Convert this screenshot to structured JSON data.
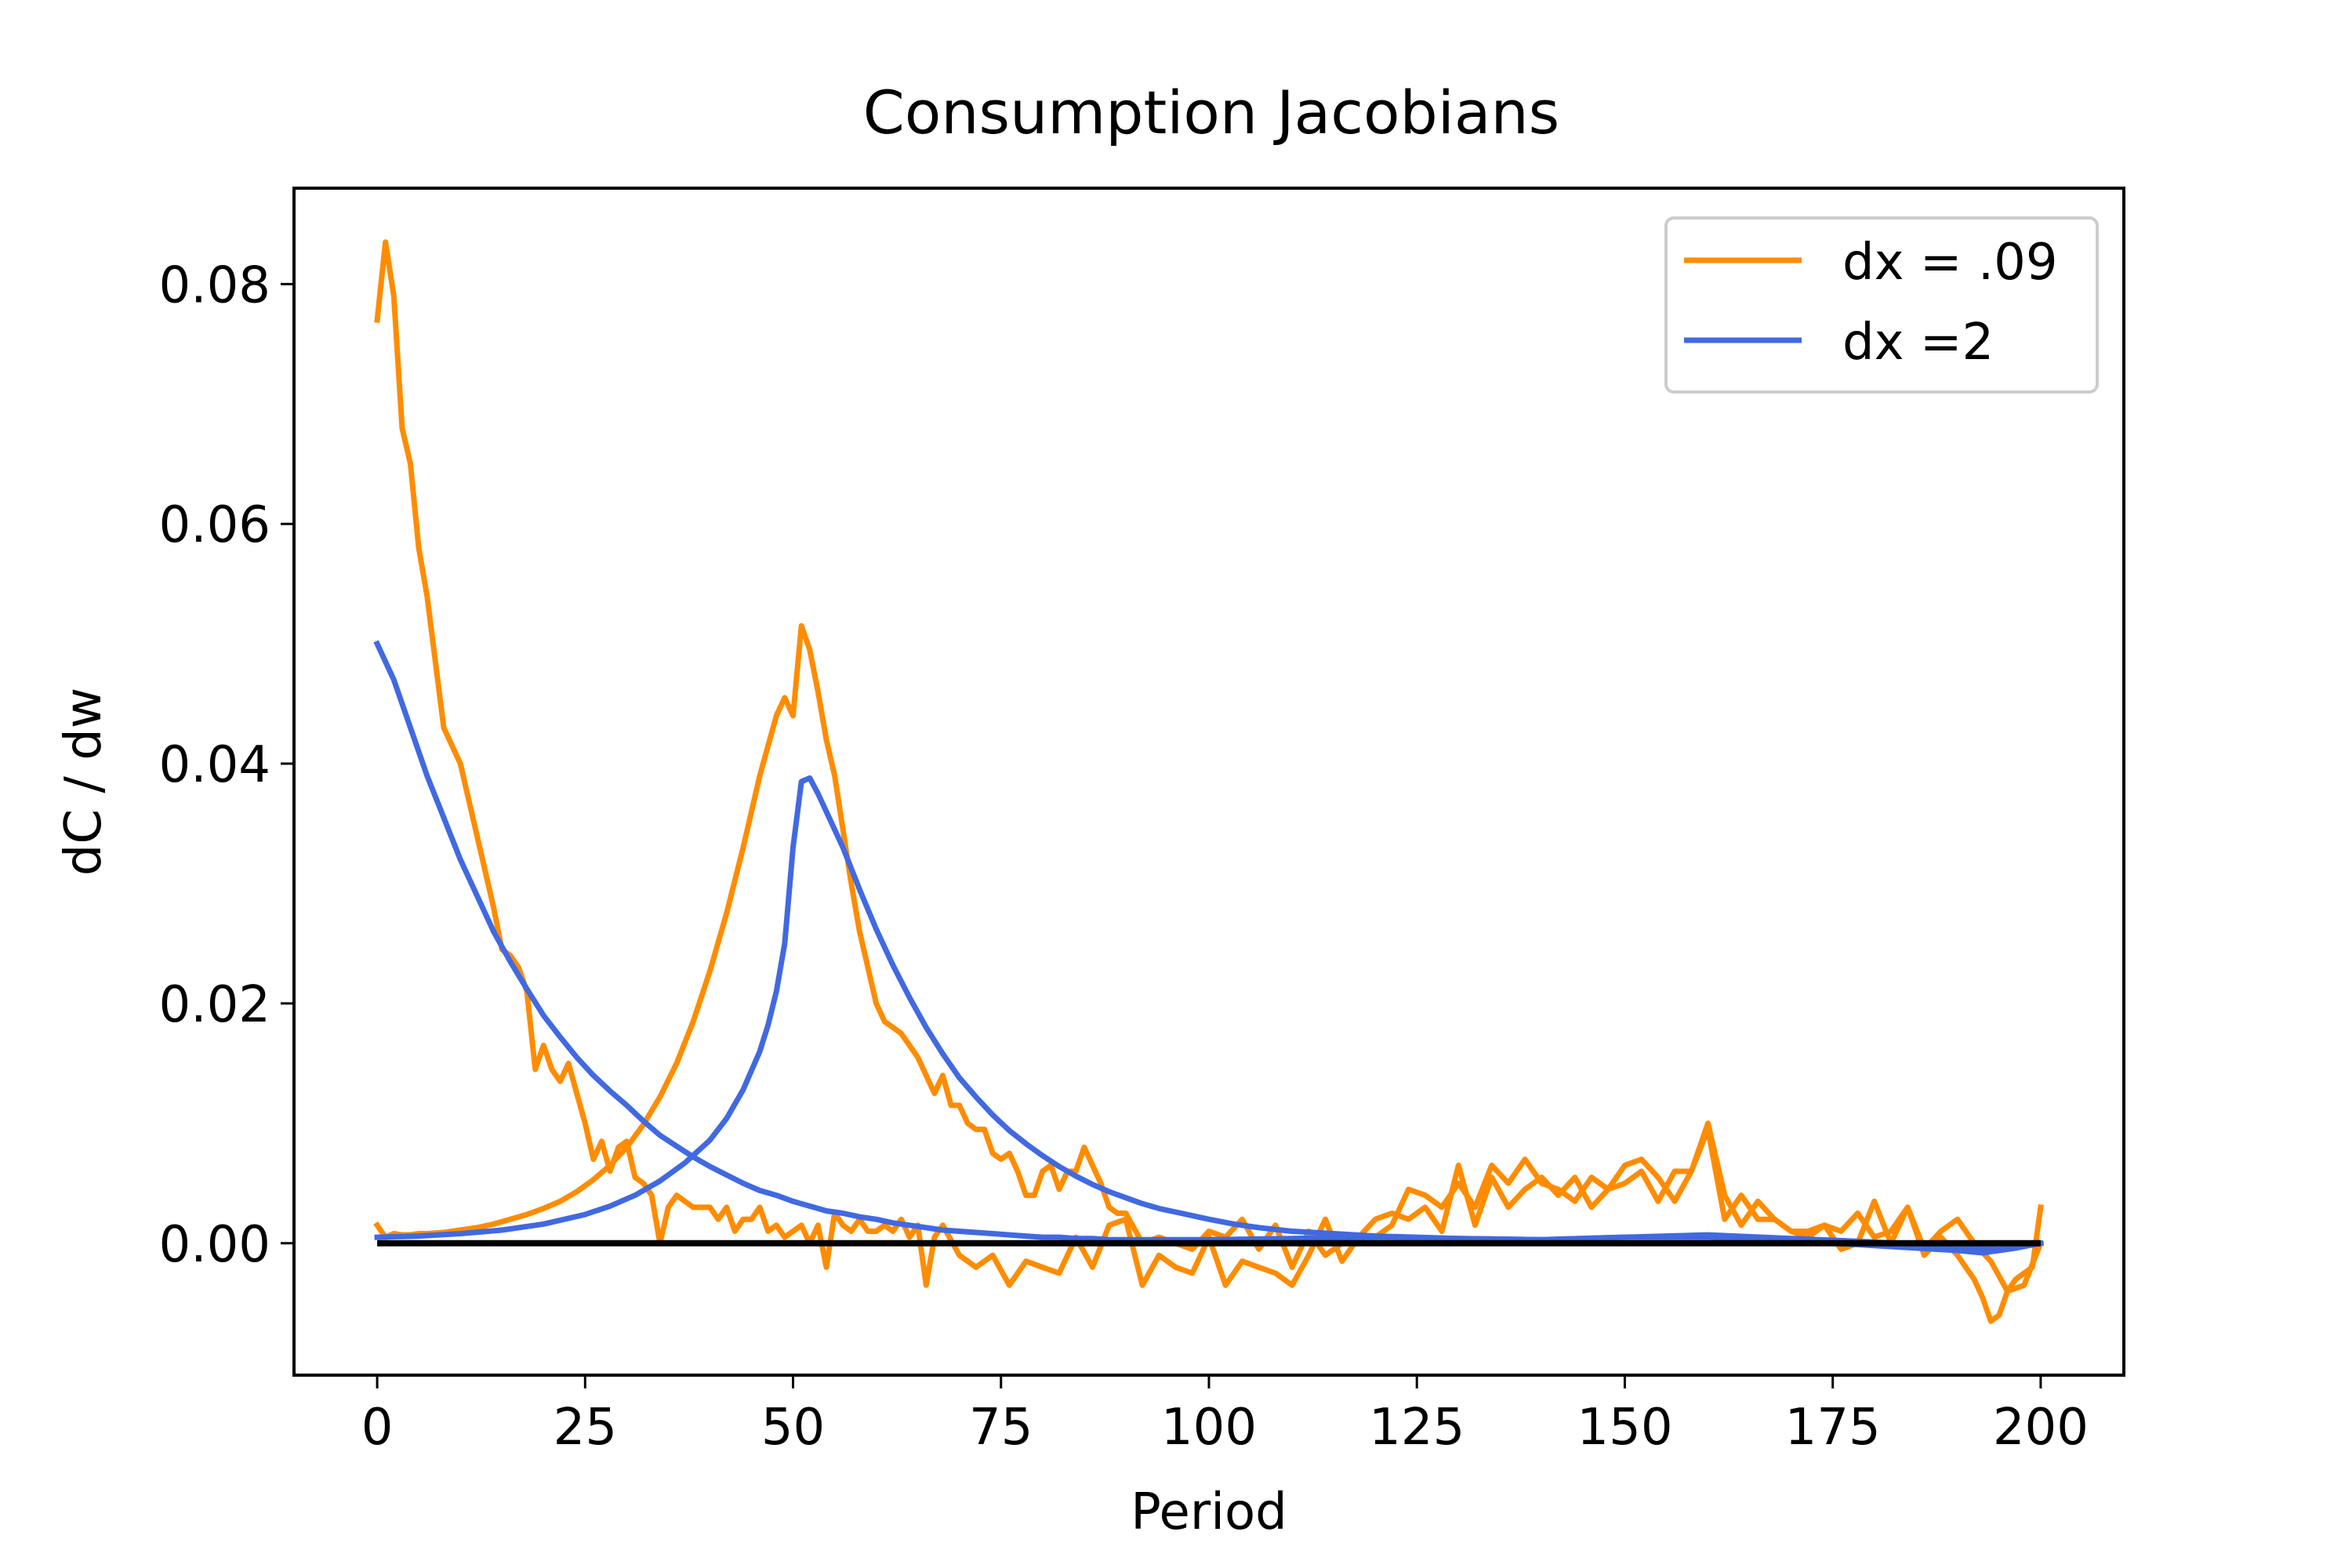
{
  "chart_data": {
    "type": "line",
    "title": "Consumption Jacobians",
    "xlabel": "Period",
    "ylabel": "dC / dw",
    "xlim": [
      -10,
      210
    ],
    "ylim": [
      -0.011,
      0.088
    ],
    "xticks": [
      0,
      25,
      50,
      75,
      100,
      125,
      150,
      175,
      200
    ],
    "yticks": [
      0.0,
      0.02,
      0.04,
      0.06,
      0.08
    ],
    "ytick_labels": [
      "0.00",
      "0.02",
      "0.04",
      "0.06",
      "0.08"
    ],
    "grid": false,
    "legend": {
      "position": "upper right",
      "entries": [
        "dx = .09",
        "dx =2"
      ]
    },
    "zero_line": {
      "y": 0,
      "x_range": [
        0,
        200
      ],
      "color": "#000000"
    },
    "series": [
      {
        "name": "dx = .09",
        "color": "#ff8c00",
        "role": "column-0",
        "x": [
          0,
          1,
          2,
          3,
          4,
          5,
          6,
          8,
          10,
          12,
          14,
          15,
          16,
          17,
          18,
          19,
          20,
          21,
          22,
          23,
          24,
          25,
          26,
          27,
          28,
          29,
          30,
          31,
          32,
          33,
          34,
          35,
          36,
          37,
          38,
          39,
          40,
          41,
          42,
          43,
          44,
          45,
          46,
          47,
          48,
          49,
          50,
          51,
          52,
          53,
          54,
          55,
          56,
          57,
          58,
          59,
          60,
          61,
          62,
          63,
          64,
          65,
          66,
          67,
          68,
          70,
          72,
          74,
          76,
          78,
          80,
          82,
          84,
          86,
          88,
          90,
          92,
          94,
          96,
          98,
          100,
          102,
          104,
          106,
          108,
          110,
          112,
          114,
          116,
          118,
          120,
          122,
          124,
          126,
          128,
          130,
          132,
          134,
          136,
          138,
          140,
          142,
          144,
          146,
          148,
          150,
          152,
          154,
          156,
          158,
          160,
          162,
          164,
          166,
          168,
          170,
          172,
          174,
          176,
          178,
          180,
          182,
          184,
          186,
          188,
          190,
          192,
          193,
          194,
          195,
          196,
          197,
          198,
          199,
          200
        ],
        "values": [
          0.077,
          0.0835,
          0.079,
          0.068,
          0.065,
          0.058,
          0.054,
          0.043,
          0.04,
          0.034,
          0.028,
          0.0245,
          0.024,
          0.023,
          0.021,
          0.0145,
          0.0165,
          0.0145,
          0.0135,
          0.015,
          0.0125,
          0.01,
          0.007,
          0.0085,
          0.006,
          0.008,
          0.0085,
          0.0055,
          0.005,
          0.004,
          0.0,
          0.003,
          0.004,
          0.0035,
          0.003,
          0.003,
          0.003,
          0.002,
          0.003,
          0.001,
          0.002,
          0.002,
          0.003,
          0.001,
          0.0015,
          0.0005,
          0.001,
          0.0015,
          0.0,
          0.0015,
          -0.002,
          0.0025,
          0.0015,
          0.001,
          0.002,
          0.001,
          0.001,
          0.0015,
          0.001,
          0.002,
          0.0005,
          0.0015,
          -0.0035,
          0.0005,
          0.0015,
          -0.001,
          -0.002,
          -0.001,
          -0.0035,
          -0.0015,
          -0.002,
          -0.0025,
          0.0005,
          -0.002,
          0.0015,
          0.002,
          -0.0035,
          -0.001,
          -0.002,
          -0.0025,
          0.0005,
          -0.0035,
          -0.0015,
          -0.002,
          -0.0025,
          -0.0035,
          -0.001,
          0.002,
          -0.0015,
          0.0005,
          0.002,
          0.0025,
          0.002,
          0.003,
          0.001,
          0.0065,
          0.0015,
          0.0055,
          0.003,
          0.0045,
          0.0055,
          0.004,
          0.0055,
          0.003,
          0.0045,
          0.0065,
          0.007,
          0.0055,
          0.0035,
          0.006,
          0.0095,
          0.002,
          0.004,
          0.002,
          0.002,
          0.001,
          0.0005,
          0.0015,
          0.001,
          0.0025,
          0.0005,
          0.001,
          0.003,
          -0.001,
          0.0005,
          -0.001,
          -0.003,
          -0.0045,
          -0.0065,
          -0.006,
          -0.004,
          -0.003,
          -0.0025,
          -0.002,
          0.003
        ]
      },
      {
        "name": "dx = .09",
        "color": "#ff8c00",
        "role": "column-50",
        "x": [
          0,
          1,
          2,
          3,
          4,
          5,
          6,
          8,
          10,
          12,
          14,
          16,
          18,
          20,
          22,
          24,
          26,
          28,
          30,
          32,
          34,
          36,
          38,
          40,
          42,
          44,
          46,
          48,
          49,
          50,
          51,
          52,
          53,
          54,
          55,
          56,
          57,
          58,
          59,
          60,
          61,
          62,
          63,
          64,
          65,
          66,
          67,
          68,
          69,
          70,
          71,
          72,
          73,
          74,
          75,
          76,
          77,
          78,
          79,
          80,
          81,
          82,
          83,
          84,
          85,
          86,
          87,
          88,
          89,
          90,
          92,
          94,
          96,
          98,
          100,
          102,
          104,
          106,
          108,
          110,
          112,
          114,
          116,
          118,
          120,
          122,
          124,
          126,
          128,
          130,
          132,
          134,
          136,
          138,
          140,
          142,
          144,
          146,
          148,
          150,
          152,
          154,
          156,
          158,
          160,
          162,
          164,
          166,
          168,
          170,
          172,
          174,
          176,
          178,
          180,
          182,
          184,
          186,
          188,
          190,
          192,
          194,
          196,
          198,
          200
        ],
        "values": [
          0.0015,
          0.0005,
          0.0008,
          0.0007,
          0.0007,
          0.0008,
          0.0008,
          0.0009,
          0.0011,
          0.0013,
          0.0016,
          0.002,
          0.0024,
          0.0029,
          0.0035,
          0.0043,
          0.0053,
          0.0065,
          0.008,
          0.0099,
          0.0122,
          0.015,
          0.0185,
          0.0227,
          0.0275,
          0.033,
          0.039,
          0.044,
          0.0455,
          0.044,
          0.0515,
          0.0495,
          0.046,
          0.042,
          0.039,
          0.0345,
          0.03,
          0.026,
          0.023,
          0.02,
          0.0185,
          0.018,
          0.0175,
          0.0165,
          0.0155,
          0.014,
          0.0125,
          0.014,
          0.0115,
          0.0115,
          0.01,
          0.0095,
          0.0095,
          0.0075,
          0.007,
          0.0075,
          0.006,
          0.004,
          0.004,
          0.006,
          0.0065,
          0.0045,
          0.006,
          0.006,
          0.008,
          0.0065,
          0.005,
          0.003,
          0.0025,
          0.0025,
          0.0,
          0.0005,
          0.0,
          -0.0005,
          0.001,
          0.0005,
          0.002,
          -0.0005,
          0.0015,
          -0.002,
          0.001,
          -0.001,
          0.0,
          0.0,
          0.0005,
          0.0015,
          0.0045,
          0.004,
          0.003,
          0.005,
          0.003,
          0.0065,
          0.005,
          0.007,
          0.005,
          0.0045,
          0.0035,
          0.0055,
          0.0045,
          0.005,
          0.006,
          0.0035,
          0.006,
          0.006,
          0.01,
          0.004,
          0.0015,
          0.0035,
          0.002,
          0.001,
          0.001,
          0.0015,
          -0.0005,
          0.0,
          0.0035,
          0.0,
          0.003,
          -0.0005,
          0.001,
          0.002,
          0.0,
          -0.0015,
          -0.004,
          -0.0035,
          0.0
        ]
      },
      {
        "name": "dx =2",
        "color": "#4169e1",
        "role": "column-0",
        "x": [
          0,
          2,
          4,
          6,
          8,
          10,
          12,
          14,
          16,
          18,
          20,
          22,
          24,
          26,
          28,
          30,
          32,
          34,
          36,
          38,
          40,
          42,
          44,
          46,
          48,
          50,
          52,
          54,
          56,
          58,
          60,
          62,
          64,
          66,
          68,
          70,
          72,
          74,
          76,
          78,
          80,
          82,
          84,
          86,
          88,
          90,
          95,
          100,
          110,
          120,
          130,
          140,
          150,
          160,
          170,
          175,
          180,
          185,
          190,
          193,
          195,
          197,
          200
        ],
        "values": [
          0.05,
          0.047,
          0.043,
          0.039,
          0.0355,
          0.032,
          0.029,
          0.026,
          0.0235,
          0.0212,
          0.019,
          0.0172,
          0.0155,
          0.014,
          0.0127,
          0.0115,
          0.0102,
          0.009,
          0.0081,
          0.0072,
          0.0064,
          0.0057,
          0.005,
          0.0044,
          0.004,
          0.0035,
          0.0031,
          0.0027,
          0.0025,
          0.0022,
          0.002,
          0.0017,
          0.0015,
          0.0013,
          0.0011,
          0.001,
          0.0009,
          0.0008,
          0.0007,
          0.0006,
          0.0005,
          0.0005,
          0.0004,
          0.0004,
          0.0003,
          0.0003,
          0.0003,
          0.0003,
          0.0004,
          0.0005,
          0.0004,
          0.0003,
          0.0005,
          0.0005,
          0.0002,
          0.0,
          -0.0002,
          -0.0004,
          -0.0006,
          -0.0008,
          -0.0006,
          -0.0004,
          0.0
        ]
      },
      {
        "name": "dx =2",
        "color": "#4169e1",
        "role": "column-50",
        "x": [
          0,
          5,
          10,
          15,
          20,
          25,
          28,
          31,
          34,
          37,
          40,
          42,
          44,
          46,
          47,
          48,
          49,
          50,
          51,
          52,
          53,
          54,
          56,
          58,
          60,
          62,
          64,
          66,
          68,
          70,
          72,
          74,
          76,
          78,
          80,
          82,
          84,
          86,
          88,
          90,
          92,
          94,
          96,
          98,
          100,
          103,
          106,
          110,
          115,
          120,
          130,
          140,
          150,
          160,
          170,
          180,
          190,
          195,
          200
        ],
        "values": [
          0.0005,
          0.0006,
          0.0008,
          0.0011,
          0.0016,
          0.0024,
          0.0031,
          0.004,
          0.0052,
          0.0067,
          0.0086,
          0.0104,
          0.0128,
          0.016,
          0.0182,
          0.021,
          0.025,
          0.033,
          0.0385,
          0.0388,
          0.0375,
          0.036,
          0.033,
          0.0295,
          0.0262,
          0.0232,
          0.0205,
          0.018,
          0.0158,
          0.0138,
          0.0122,
          0.0107,
          0.0094,
          0.0083,
          0.0073,
          0.0064,
          0.0056,
          0.0049,
          0.0043,
          0.0038,
          0.0033,
          0.0029,
          0.0026,
          0.0023,
          0.002,
          0.0016,
          0.0013,
          0.001,
          0.0008,
          0.0006,
          0.0004,
          0.0003,
          0.0005,
          0.0007,
          0.0004,
          0.0001,
          -0.0003,
          -0.0005,
          0.0
        ]
      }
    ]
  }
}
